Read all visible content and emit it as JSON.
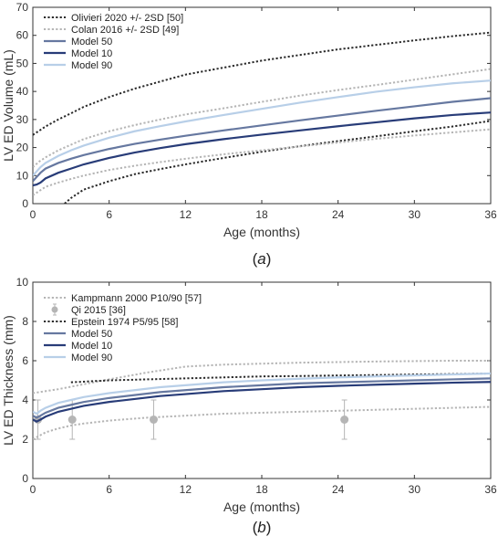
{
  "chart_data": [
    {
      "type": "line",
      "caption": "(a)",
      "xlabel": "Age (months)",
      "ylabel": "LV ED Volume (mL)",
      "xlim": [
        0,
        36
      ],
      "ylim": [
        0,
        70
      ],
      "xticks": [
        0,
        6,
        12,
        18,
        24,
        30,
        36
      ],
      "yticks": [
        0,
        10,
        20,
        30,
        40,
        50,
        60,
        70
      ],
      "grid": false,
      "legend_position": "top-left",
      "series": [
        {
          "name": "Olivieri 2020 +/- 2SD [50]",
          "style": "dotted",
          "color": "#2a2a2a",
          "bands": [
            {
              "x": [
                0,
                1,
                2,
                3,
                4,
                6,
                8,
                10,
                12,
                15,
                18,
                21,
                24,
                27,
                30,
                33,
                36
              ],
              "y": [
                24.5,
                27.5,
                30,
                32.2,
                34.5,
                38,
                41,
                43.5,
                46,
                48.5,
                51,
                53,
                55,
                56.6,
                58.2,
                59.7,
                61
              ]
            },
            {
              "x": [
                2.5,
                3,
                4,
                6,
                8,
                10,
                12,
                15,
                18,
                21,
                24,
                27,
                30,
                33,
                36
              ],
              "y": [
                0,
                2,
                5,
                8,
                10.5,
                12.3,
                14,
                16.3,
                18.5,
                20.5,
                22.3,
                24,
                25.8,
                27.5,
                29.5
              ]
            }
          ]
        },
        {
          "name": "Colan 2016 +/- 2SD [49]",
          "style": "dotted",
          "color": "#b5b5b5",
          "bands": [
            {
              "x": [
                0,
                0.5,
                1,
                2,
                3,
                4,
                6,
                8,
                10,
                12,
                15,
                18,
                21,
                24,
                27,
                30,
                33,
                36
              ],
              "y": [
                13,
                15,
                16.5,
                19,
                21,
                23,
                25.8,
                28,
                30,
                31.8,
                34,
                36.3,
                38.5,
                40.5,
                42.3,
                44.2,
                46.1,
                48
              ]
            },
            {
              "x": [
                0,
                0.5,
                1,
                2,
                3,
                4,
                6,
                8,
                10,
                12,
                15,
                18,
                21,
                24,
                27,
                30,
                33,
                36
              ],
              "y": [
                3,
                4.5,
                6,
                7.5,
                8.8,
                10,
                12,
                13.5,
                14.8,
                16,
                17.6,
                19,
                20.4,
                21.8,
                23.1,
                24.3,
                25.4,
                26.5
              ]
            }
          ]
        },
        {
          "name": "Model 50",
          "style": "solid",
          "color": "#6678a0",
          "x": [
            0,
            0.3,
            0.6,
            1,
            2,
            3,
            4,
            6,
            8,
            10,
            12,
            15,
            18,
            21,
            24,
            27,
            30,
            33,
            36
          ],
          "y": [
            8,
            9.5,
            11,
            12.5,
            14.5,
            16,
            17.3,
            19.5,
            21.3,
            22.8,
            24.2,
            26.1,
            27.9,
            29.7,
            31.4,
            33.1,
            34.7,
            36.3,
            37.6
          ]
        },
        {
          "name": "Model 10",
          "style": "solid",
          "color": "#283c78",
          "x": [
            0,
            0.3,
            0.6,
            1,
            2,
            3,
            4,
            6,
            8,
            10,
            12,
            15,
            18,
            21,
            24,
            27,
            30,
            33,
            36
          ],
          "y": [
            6.5,
            6.8,
            7.5,
            9,
            11,
            12.5,
            14,
            16.3,
            18.2,
            19.8,
            21.2,
            23,
            24.6,
            26.1,
            27.6,
            29,
            30.4,
            31.6,
            32.5
          ]
        },
        {
          "name": "Model 90",
          "style": "solid",
          "color": "#b8cfe8",
          "x": [
            0,
            0.3,
            0.6,
            1,
            2,
            3,
            4,
            6,
            8,
            10,
            12,
            15,
            18,
            21,
            24,
            27,
            30,
            33,
            36
          ],
          "y": [
            10,
            11.5,
            13,
            14.5,
            17,
            19,
            20.7,
            23.5,
            25.8,
            27.6,
            29.3,
            31.6,
            33.8,
            36,
            38,
            39.9,
            41.5,
            42.9,
            43.9
          ]
        }
      ]
    },
    {
      "type": "line",
      "caption": "(b)",
      "xlabel": "Age (months)",
      "ylabel": "LV ED Thickness (mm)",
      "xlim": [
        0,
        36
      ],
      "ylim": [
        0,
        10
      ],
      "xticks": [
        0,
        6,
        12,
        18,
        24,
        30,
        36
      ],
      "yticks": [
        0,
        2,
        4,
        6,
        8,
        10
      ],
      "grid": false,
      "legend_position": "top-left",
      "series": [
        {
          "name": "Kampmann 2000 P10/90 [57]",
          "style": "dotted",
          "color": "#b5b5b5",
          "bands": [
            {
              "x": [
                0,
                2,
                4,
                6,
                9,
                12,
                15,
                18,
                21,
                24,
                27,
                30,
                33,
                36
              ],
              "y": [
                4.35,
                4.55,
                4.8,
                5.05,
                5.4,
                5.7,
                5.8,
                5.85,
                5.9,
                5.93,
                5.96,
                5.98,
                6.0,
                6.0
              ]
            },
            {
              "x": [
                0,
                1,
                2,
                3,
                4,
                6,
                9,
                12,
                15,
                18,
                21,
                24,
                27,
                30,
                33,
                36
              ],
              "y": [
                2.0,
                2.35,
                2.55,
                2.7,
                2.8,
                2.95,
                3.1,
                3.2,
                3.3,
                3.35,
                3.4,
                3.45,
                3.5,
                3.55,
                3.6,
                3.65
              ]
            }
          ]
        },
        {
          "name": "Qi 2015 [36]",
          "style": "marker",
          "color": "#b5b5b5",
          "x": [
            0.4,
            3.1,
            9.5,
            24.5
          ],
          "y": [
            3.0,
            3.0,
            3.0,
            3.0
          ],
          "err": [
            1.0,
            1.0,
            1.0,
            1.0
          ]
        },
        {
          "name": "Epstein 1974 P5/95 [58]",
          "style": "dotted",
          "color": "#2a2a2a",
          "bands": [
            {
              "x": [
                3,
                6,
                9,
                12,
                15,
                18,
                21,
                24,
                27,
                30,
                33,
                36
              ],
              "y": [
                4.9,
                5.0,
                5.05,
                5.1,
                5.15,
                5.2,
                5.22,
                5.25,
                5.27,
                5.3,
                5.32,
                5.35
              ]
            }
          ]
        },
        {
          "name": "Model 50",
          "style": "solid",
          "color": "#6678a0",
          "x": [
            0,
            0.3,
            0.6,
            1,
            2,
            3,
            4,
            6,
            8,
            10,
            12,
            15,
            18,
            21,
            24,
            27,
            30,
            33,
            36
          ],
          "y": [
            3.2,
            3.1,
            3.2,
            3.35,
            3.6,
            3.75,
            3.9,
            4.1,
            4.25,
            4.4,
            4.5,
            4.65,
            4.75,
            4.85,
            4.9,
            4.95,
            5.0,
            5.05,
            5.1
          ]
        },
        {
          "name": "Model 10",
          "style": "solid",
          "color": "#283c78",
          "x": [
            0,
            0.3,
            0.6,
            1,
            2,
            3,
            4,
            6,
            8,
            10,
            12,
            15,
            18,
            21,
            24,
            27,
            30,
            33,
            36
          ],
          "y": [
            3.0,
            2.9,
            3.0,
            3.15,
            3.4,
            3.55,
            3.7,
            3.9,
            4.05,
            4.2,
            4.3,
            4.45,
            4.55,
            4.65,
            4.72,
            4.78,
            4.83,
            4.88,
            4.92
          ]
        },
        {
          "name": "Model 90",
          "style": "solid",
          "color": "#b8cfe8",
          "x": [
            0,
            0.3,
            0.6,
            1,
            2,
            3,
            4,
            6,
            8,
            10,
            12,
            15,
            18,
            21,
            24,
            27,
            30,
            33,
            36
          ],
          "y": [
            3.4,
            3.3,
            3.45,
            3.6,
            3.85,
            4.0,
            4.15,
            4.35,
            4.5,
            4.65,
            4.75,
            4.9,
            5.0,
            5.08,
            5.15,
            5.2,
            5.25,
            5.3,
            5.35
          ]
        }
      ]
    }
  ]
}
